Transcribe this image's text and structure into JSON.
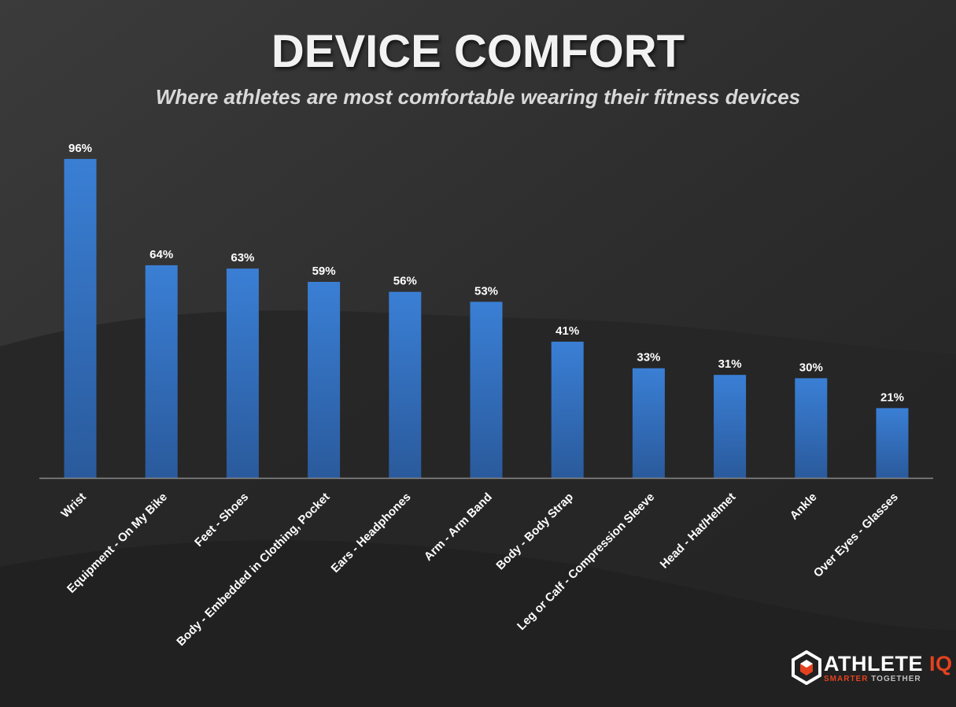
{
  "colors": {
    "bar_top": "#3a7fd5",
    "bar_bottom": "#2a5a9c",
    "background": "#2a2a2a",
    "brand_accent": "#e4421f"
  },
  "chart_data": {
    "type": "bar",
    "title": "DEVICE COMFORT",
    "subtitle": "Where athletes are most comfortable wearing their fitness devices",
    "categories": [
      "Wrist",
      "Equipment - On My Bike",
      "Feet - Shoes",
      "Body - Embedded in Clothing, Pocket",
      "Ears - Headphones",
      "Arm - Arm Band",
      "Body - Body Strap",
      "Leg or Calf - Compression Sleeve",
      "Head - Hat/Helmet",
      "Ankle",
      "Over Eyes - Glasses"
    ],
    "values": [
      96,
      64,
      63,
      59,
      56,
      53,
      41,
      33,
      31,
      30,
      21
    ],
    "value_labels": [
      "96%",
      "64%",
      "63%",
      "59%",
      "56%",
      "53%",
      "41%",
      "33%",
      "31%",
      "30%",
      "21%"
    ],
    "ylim": [
      0,
      100
    ],
    "grid": false,
    "legend": "none"
  },
  "logo": {
    "word1": "ATHLETE",
    "word2": "IQ",
    "tag_highlight": "SMARTER",
    "tag_rest": "TOGETHER"
  }
}
